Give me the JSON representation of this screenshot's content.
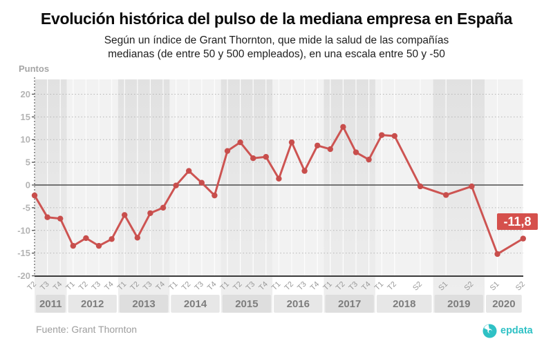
{
  "chart_data": {
    "type": "line",
    "title": "Evolución histórica del pulso de la mediana empresa en España",
    "subtitle_line1": "Según un índice de Grant Thornton, que mide la salud de las compañías",
    "subtitle_line2": "medianas (de entre 50 y 500 empleados), en una escala entre 50 y -50",
    "unit_label": "Puntos",
    "source": "Fuente: Grant Thornton",
    "ylim": [
      -20,
      23
    ],
    "y_ticks": [
      20,
      15,
      10,
      5,
      0,
      -5,
      -10,
      -15,
      -20
    ],
    "grid": true,
    "legend": "none",
    "line_color": "#cd5452",
    "marker_color": "#c84e4c",
    "annotation": {
      "text": "-11,8",
      "value": -11.8,
      "bg_color": "#d5504c"
    },
    "points": [
      {
        "year": "2011",
        "period": "T2",
        "value": -2.3
      },
      {
        "year": "2011",
        "period": "T3",
        "value": -7.1
      },
      {
        "year": "2011",
        "period": "T4",
        "value": -7.4
      },
      {
        "year": "2012",
        "period": "T1",
        "value": -13.4
      },
      {
        "year": "2012",
        "period": "T2",
        "value": -11.7
      },
      {
        "year": "2012",
        "period": "T3",
        "value": -13.4
      },
      {
        "year": "2012",
        "period": "T4",
        "value": -11.9
      },
      {
        "year": "2013",
        "period": "T1",
        "value": -6.6
      },
      {
        "year": "2013",
        "period": "T2",
        "value": -11.6
      },
      {
        "year": "2013",
        "period": "T3",
        "value": -6.2
      },
      {
        "year": "2013",
        "period": "T4",
        "value": -5.0
      },
      {
        "year": "2014",
        "period": "T1",
        "value": -0.1
      },
      {
        "year": "2014",
        "period": "T2",
        "value": 3.1
      },
      {
        "year": "2014",
        "period": "T3",
        "value": 0.5
      },
      {
        "year": "2014",
        "period": "T4",
        "value": -2.3
      },
      {
        "year": "2015",
        "period": "T1",
        "value": 7.5
      },
      {
        "year": "2015",
        "period": "T2",
        "value": 9.4
      },
      {
        "year": "2015",
        "period": "T3",
        "value": 5.9
      },
      {
        "year": "2015",
        "period": "T4",
        "value": 6.2
      },
      {
        "year": "2016",
        "period": "T1",
        "value": 1.4
      },
      {
        "year": "2016",
        "period": "T2",
        "value": 9.4
      },
      {
        "year": "2016",
        "period": "T3",
        "value": 3.1
      },
      {
        "year": "2016",
        "period": "T4",
        "value": 8.7
      },
      {
        "year": "2017",
        "period": "T1",
        "value": 7.9
      },
      {
        "year": "2017",
        "period": "T2",
        "value": 12.8
      },
      {
        "year": "2017",
        "period": "T3",
        "value": 7.2
      },
      {
        "year": "2017",
        "period": "T4",
        "value": 5.6
      },
      {
        "year": "2018",
        "period": "T1",
        "value": 11.0
      },
      {
        "year": "2018",
        "period": "T2",
        "value": 10.8
      },
      {
        "year": "2018",
        "period": "S2",
        "value": -0.3
      },
      {
        "year": "2019",
        "period": "S1",
        "value": -2.2
      },
      {
        "year": "2019",
        "period": "S2",
        "value": -0.3
      },
      {
        "year": "2020",
        "period": "S1",
        "value": -15.2
      },
      {
        "year": "2020",
        "period": "S2",
        "value": -11.8
      }
    ]
  },
  "footer": {
    "brand": "epdata",
    "brand_color": "#2fc1c5"
  }
}
